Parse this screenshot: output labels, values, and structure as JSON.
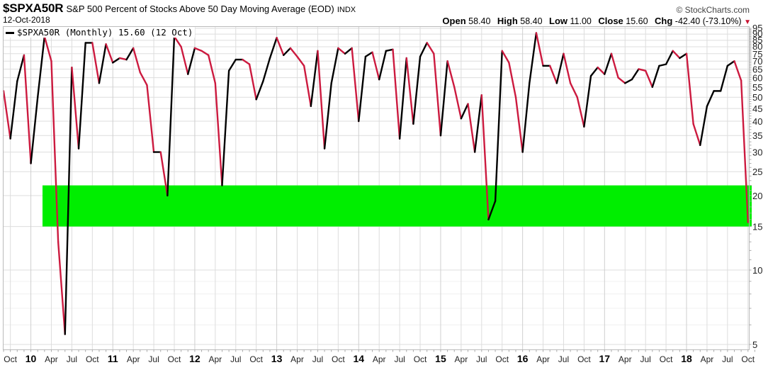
{
  "header": {
    "symbol": "$SPXA50R",
    "description": "S&P 500 Percent of Stocks Above 50 Day Moving Average (EOD)",
    "exchange": "INDX",
    "date": "12-Oct-2018",
    "brand": "© StockCharts.com",
    "open_label": "Open",
    "open": "58.40",
    "high_label": "High",
    "high": "58.40",
    "low_label": "Low",
    "low": "11.00",
    "close_label": "Close",
    "close": "15.60",
    "chg_label": "Chg",
    "chg": "-42.40 (-73.10%)",
    "chg_direction_icon": "down-triangle-icon"
  },
  "legend": {
    "label": "$SPXA50R (Monthly) 15.60 (12 Oct)"
  },
  "colors": {
    "up": "#000000",
    "down": "#cc1a3f",
    "band": "#00ee00",
    "grid": "#dddddd",
    "frame": "#bbbbbb"
  },
  "chart_data": {
    "type": "line",
    "title": "$SPXA50R S&P 500 Percent of Stocks Above 50 Day Moving Average (EOD) INDX",
    "subtitle": "12-Oct-2018",
    "xlabel": "",
    "ylabel": "",
    "yscale": "log",
    "ylim": [
      4.6,
      97
    ],
    "y_ticks": [
      5,
      10,
      15,
      20,
      25,
      30,
      35,
      40,
      45,
      50,
      55,
      60,
      65,
      70,
      75,
      80,
      85,
      90,
      95
    ],
    "x_tick_labels": [
      "Oct",
      "10",
      "Apr",
      "Jul",
      "Oct",
      "11",
      "Apr",
      "Jul",
      "Oct",
      "12",
      "Apr",
      "Jul",
      "Oct",
      "13",
      "Apr",
      "Jul",
      "Oct",
      "14",
      "Apr",
      "Jul",
      "Oct",
      "15",
      "Apr",
      "Jul",
      "Oct",
      "16",
      "Apr",
      "Jul",
      "Oct",
      "17",
      "Apr",
      "Jul",
      "Oct",
      "18",
      "Apr",
      "Jul",
      "Oct"
    ],
    "grid": true,
    "legend_position": "top-left",
    "annotations": [
      {
        "type": "horizontal-band",
        "from": 15,
        "to": 22,
        "color": "#00ee00",
        "x_start": "2010-03"
      }
    ],
    "start": "2009-09",
    "frequency": "monthly",
    "series": [
      {
        "name": "$SPXA50R (Monthly)",
        "values": [
          53,
          34,
          58,
          74,
          27,
          50,
          88,
          70,
          13,
          5.5,
          66,
          31,
          83,
          83,
          57,
          82,
          69,
          72,
          71,
          79,
          63,
          56,
          30,
          30,
          20,
          88,
          80,
          62,
          79,
          77,
          74,
          57,
          22,
          64,
          71,
          71,
          68,
          49,
          58,
          72,
          87,
          74,
          79,
          73,
          67,
          46,
          77,
          31,
          57,
          79,
          75,
          79,
          40,
          73,
          76,
          59,
          77,
          78,
          34,
          72,
          39,
          73,
          83,
          75,
          35,
          70,
          55,
          41,
          47,
          30,
          51,
          16,
          19,
          77,
          69,
          50,
          30,
          57,
          91,
          67,
          67,
          57,
          75,
          57,
          50,
          38,
          61,
          66,
          62,
          75,
          60,
          57,
          59,
          65,
          64,
          55,
          67,
          68,
          77,
          72,
          75,
          39,
          32,
          46,
          53,
          53,
          67,
          70,
          58.4,
          15.6
        ]
      }
    ]
  }
}
